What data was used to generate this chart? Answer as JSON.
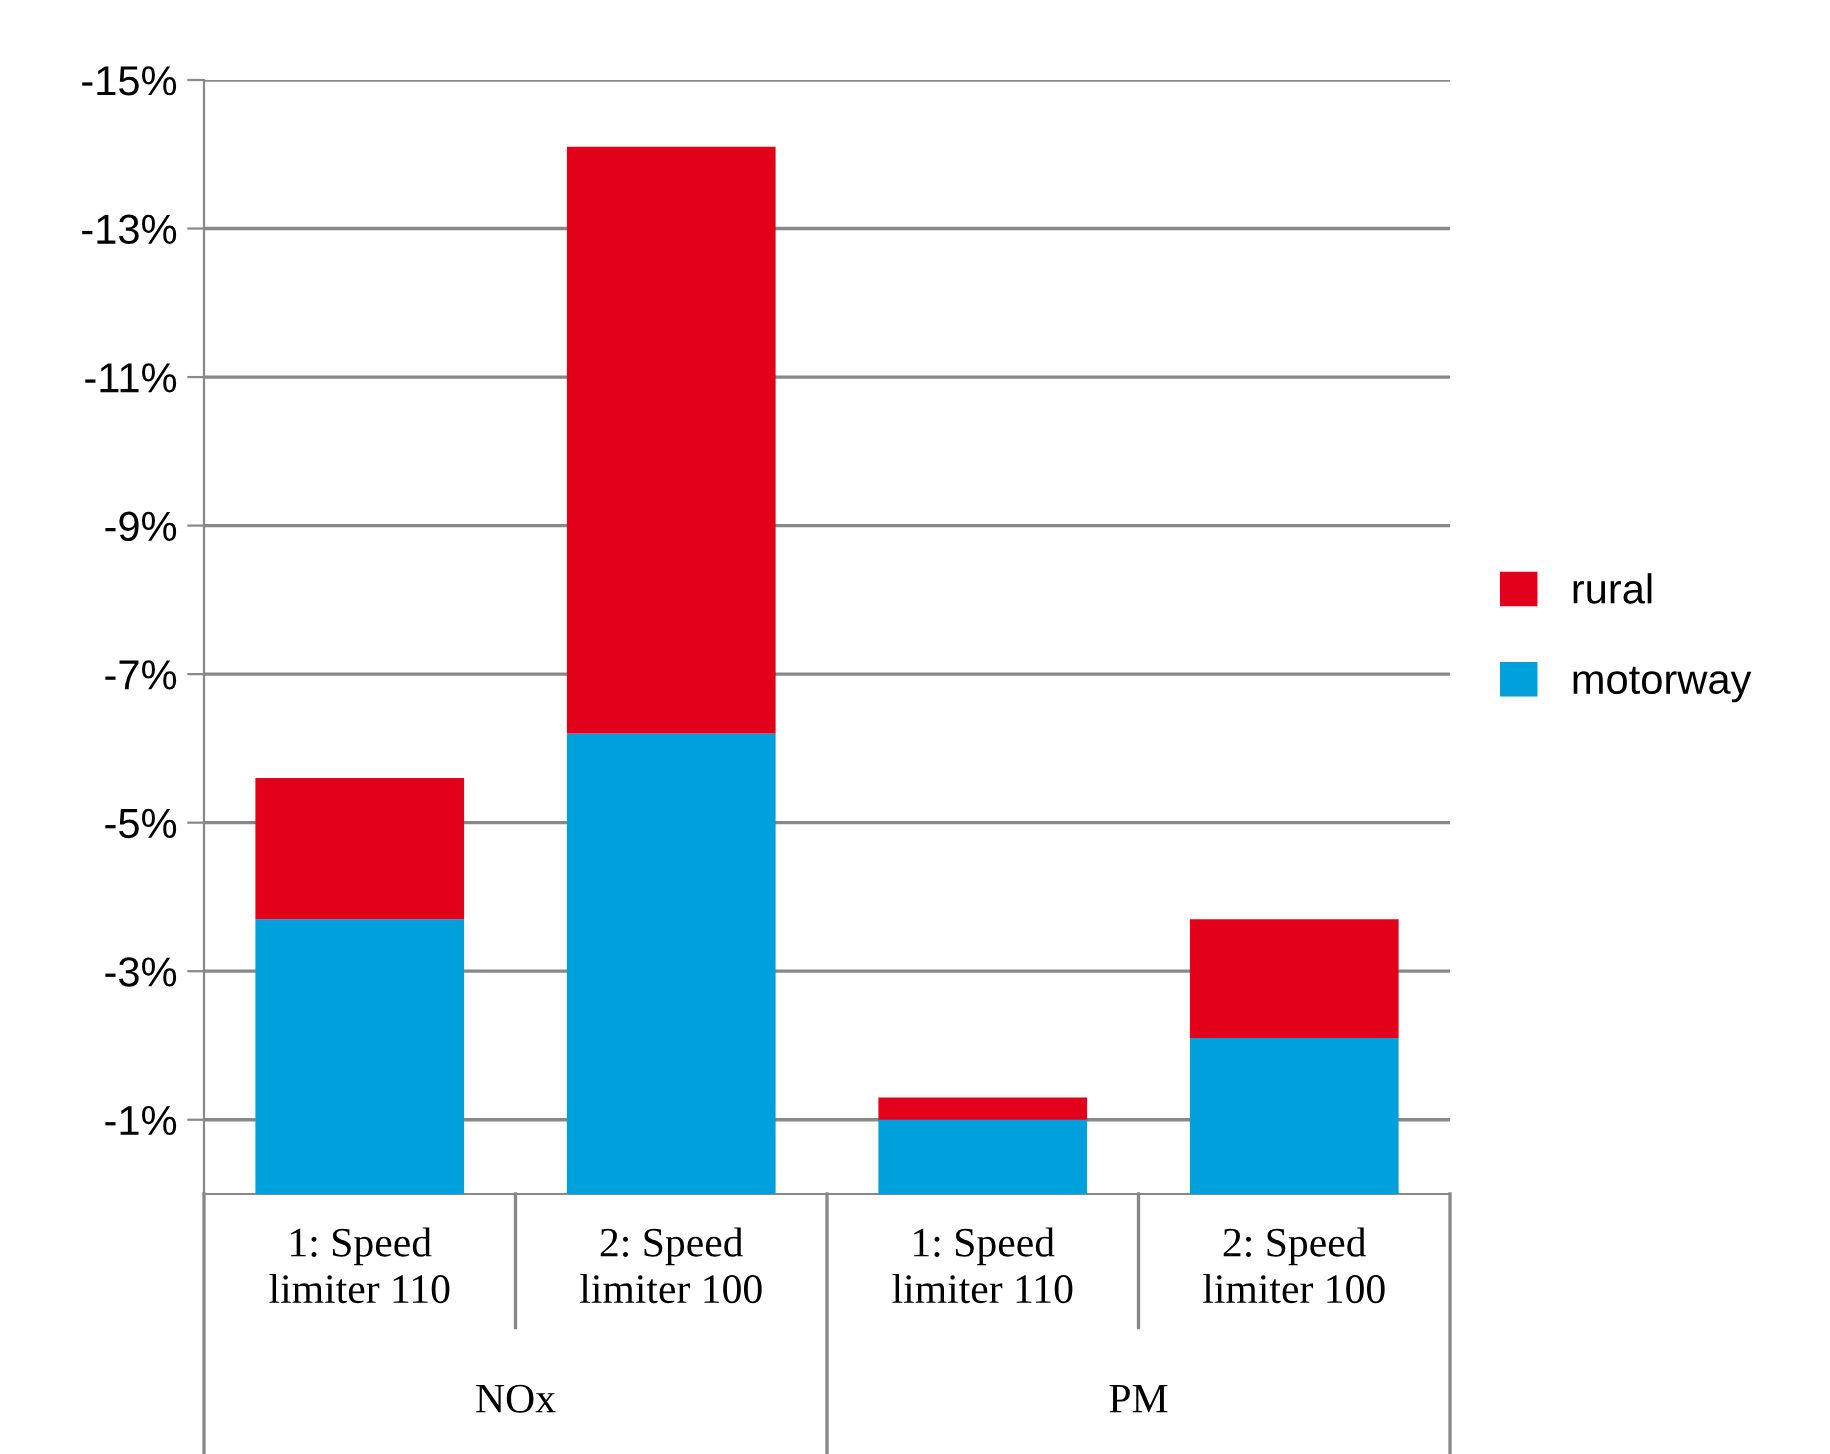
{
  "chart_data": {
    "type": "bar",
    "stacked": true,
    "categories": [
      "1: Speed\nlimiter 110",
      "2: Speed\nlimiter 100",
      "1: Speed\nlimiter 110",
      "2: Speed\nlimiter 100"
    ],
    "series": [
      {
        "name": "motorway",
        "color": "#00a0dc",
        "values": [
          -3.7,
          -6.2,
          -1.0,
          -2.1
        ]
      },
      {
        "name": "rural",
        "color": "#e2001a",
        "values": [
          -1.9,
          -7.9,
          -0.3,
          -1.6
        ]
      }
    ],
    "annotations": [
      "NOx",
      "PM"
    ],
    "ylim": [
      0,
      -15
    ],
    "yticks": [
      {
        "value": -1,
        "label": "-1%"
      },
      {
        "value": -3,
        "label": "-3%"
      },
      {
        "value": -5,
        "label": "-5%"
      },
      {
        "value": -7,
        "label": "-7%"
      },
      {
        "value": -9,
        "label": "-9%"
      },
      {
        "value": -11,
        "label": "-11%"
      },
      {
        "value": -13,
        "label": "-13%"
      },
      {
        "value": -15,
        "label": "-15%"
      }
    ],
    "grid": "y",
    "legend": "right"
  }
}
